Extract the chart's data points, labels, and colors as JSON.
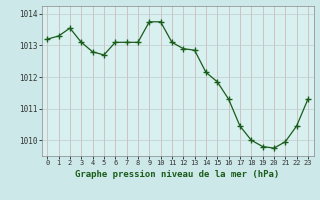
{
  "x": [
    0,
    1,
    2,
    3,
    4,
    5,
    6,
    7,
    8,
    9,
    10,
    11,
    12,
    13,
    14,
    15,
    16,
    17,
    18,
    19,
    20,
    21,
    22,
    23
  ],
  "y": [
    1013.2,
    1013.3,
    1013.55,
    1013.1,
    1012.8,
    1012.7,
    1013.1,
    1013.1,
    1013.1,
    1013.75,
    1013.75,
    1013.1,
    1012.9,
    1012.85,
    1012.15,
    1011.85,
    1011.3,
    1010.45,
    1010.0,
    1009.8,
    1009.75,
    1009.95,
    1010.45,
    1011.3
  ],
  "yticks": [
    1010,
    1011,
    1012,
    1013,
    1014
  ],
  "xticks": [
    0,
    1,
    2,
    3,
    4,
    5,
    6,
    7,
    8,
    9,
    10,
    11,
    12,
    13,
    14,
    15,
    16,
    17,
    18,
    19,
    20,
    21,
    22,
    23
  ],
  "line_color": "#1a5c1a",
  "marker_color": "#1a5c1a",
  "bg_color": "#cce8e8",
  "plot_bg": "#d8f0f0",
  "grid_color_v": "#c8b0b0",
  "grid_color_h": "#c0cccc",
  "xlabel": "Graphe pression niveau de la mer (hPa)",
  "xlabel_color": "#1a5c1a",
  "ylim": [
    1009.5,
    1014.25
  ],
  "xlim": [
    -0.5,
    23.5
  ]
}
